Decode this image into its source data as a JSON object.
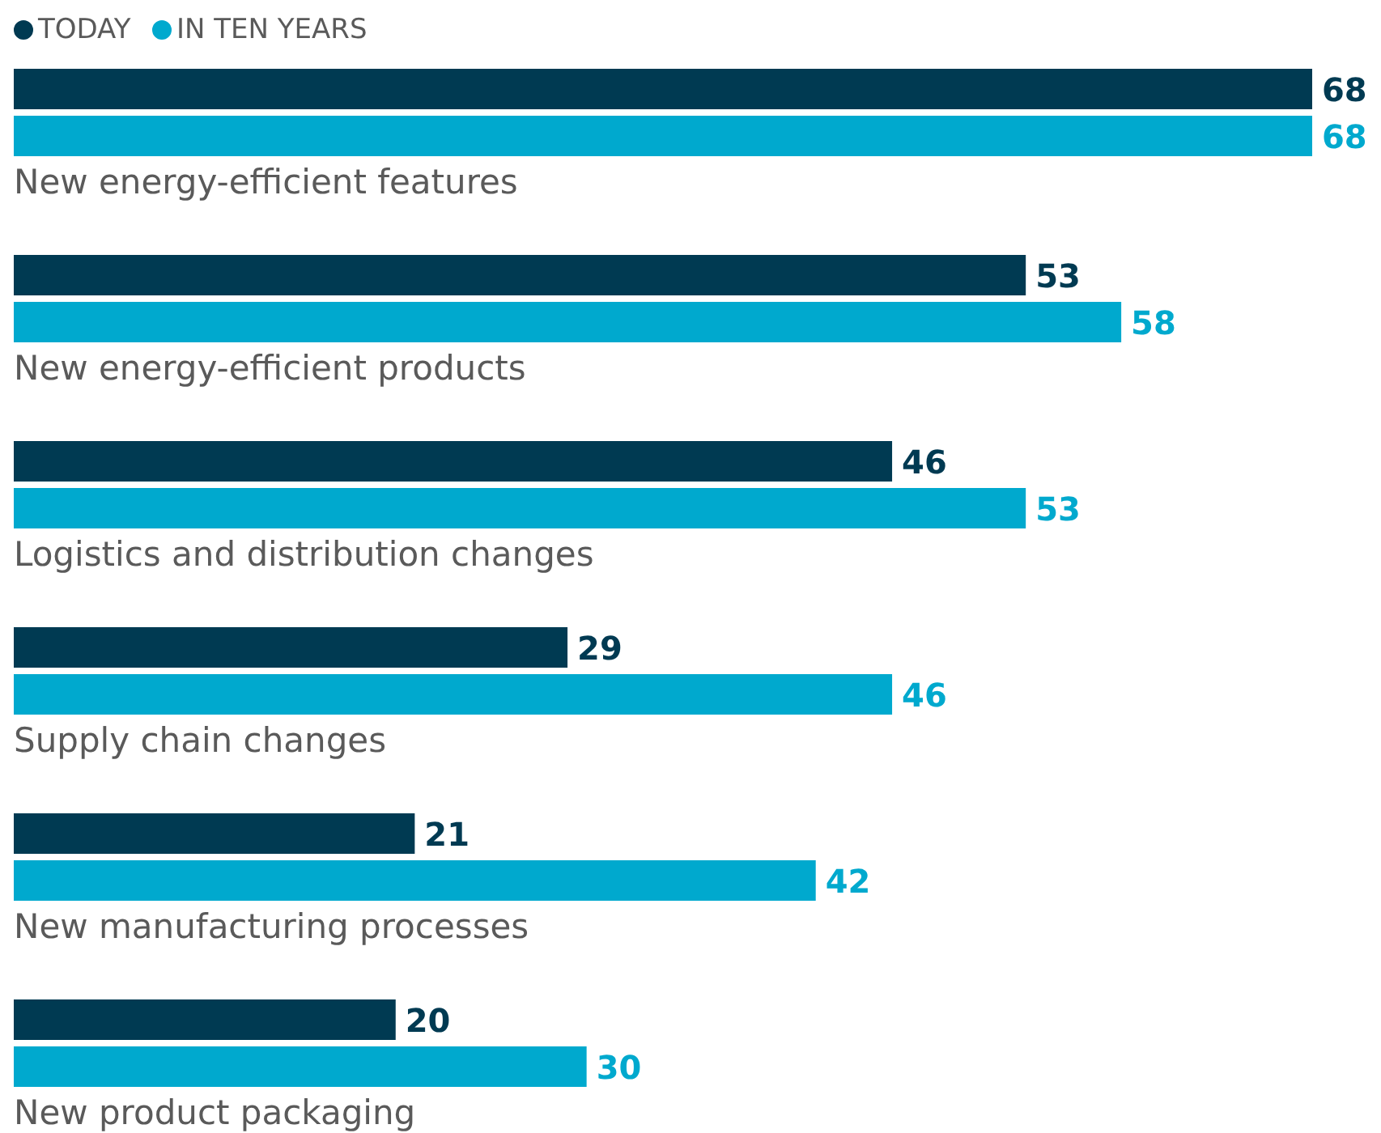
{
  "chart_data": {
    "type": "bar",
    "orientation": "horizontal",
    "categories": [
      "New energy-efficient features",
      "New energy-efficient products",
      "Logistics and distribution changes",
      "Supply chain changes",
      "New manufacturing processes",
      "New product packaging"
    ],
    "series": [
      {
        "name": "TODAY",
        "color": "#003a52",
        "values": [
          68,
          53,
          46,
          29,
          21,
          20
        ]
      },
      {
        "name": "IN TEN YEARS",
        "color": "#00a9ce",
        "values": [
          68,
          58,
          53,
          46,
          42,
          30
        ]
      }
    ],
    "data_labels": true,
    "legend": "top left",
    "grid": false
  }
}
